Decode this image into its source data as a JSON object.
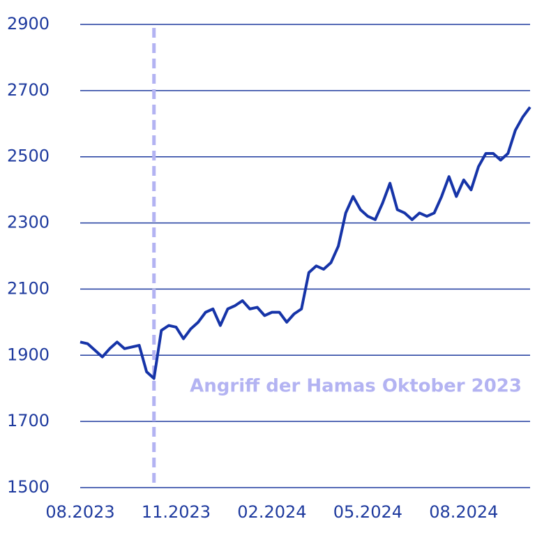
{
  "chart_data": {
    "type": "line",
    "categories": [
      "08.2023",
      null,
      null,
      null,
      null,
      null,
      null,
      null,
      null,
      null,
      null,
      null,
      null,
      "11.2023",
      null,
      null,
      null,
      null,
      null,
      null,
      null,
      null,
      null,
      null,
      null,
      null,
      "02.2024",
      null,
      null,
      null,
      null,
      null,
      null,
      null,
      null,
      null,
      null,
      null,
      null,
      "05.2024",
      null,
      null,
      null,
      null,
      null,
      null,
      null,
      null,
      null,
      null,
      null,
      null,
      "08.2024",
      null,
      null,
      null,
      null,
      null,
      null,
      null,
      null,
      null
    ],
    "series": [
      {
        "color": "#1634a8",
        "values": [
          1940,
          1935,
          1915,
          1895,
          1920,
          1940,
          1920,
          1925,
          1930,
          1850,
          1830,
          1975,
          1990,
          1985,
          1950,
          1980,
          2000,
          2030,
          2040,
          1990,
          2040,
          2050,
          2065,
          2040,
          2045,
          2020,
          2030,
          2030,
          2000,
          2025,
          2040,
          2150,
          2170,
          2160,
          2180,
          2230,
          2330,
          2380,
          2340,
          2320,
          2310,
          2360,
          2420,
          2340,
          2330,
          2310,
          2330,
          2320,
          2330,
          2380,
          2440,
          2380,
          2430,
          2400,
          2470,
          2510,
          2510,
          2490,
          2510,
          2580,
          2620,
          2650
        ]
      }
    ],
    "ylim": [
      1500,
      2900
    ],
    "yticks": [
      1500,
      1700,
      1900,
      2100,
      2300,
      2500,
      2700,
      2900
    ],
    "grid": true,
    "annotation": {
      "text": "Angriff der Hamas Oktober 2023",
      "index": 10,
      "color": "#b3b3f2"
    }
  }
}
